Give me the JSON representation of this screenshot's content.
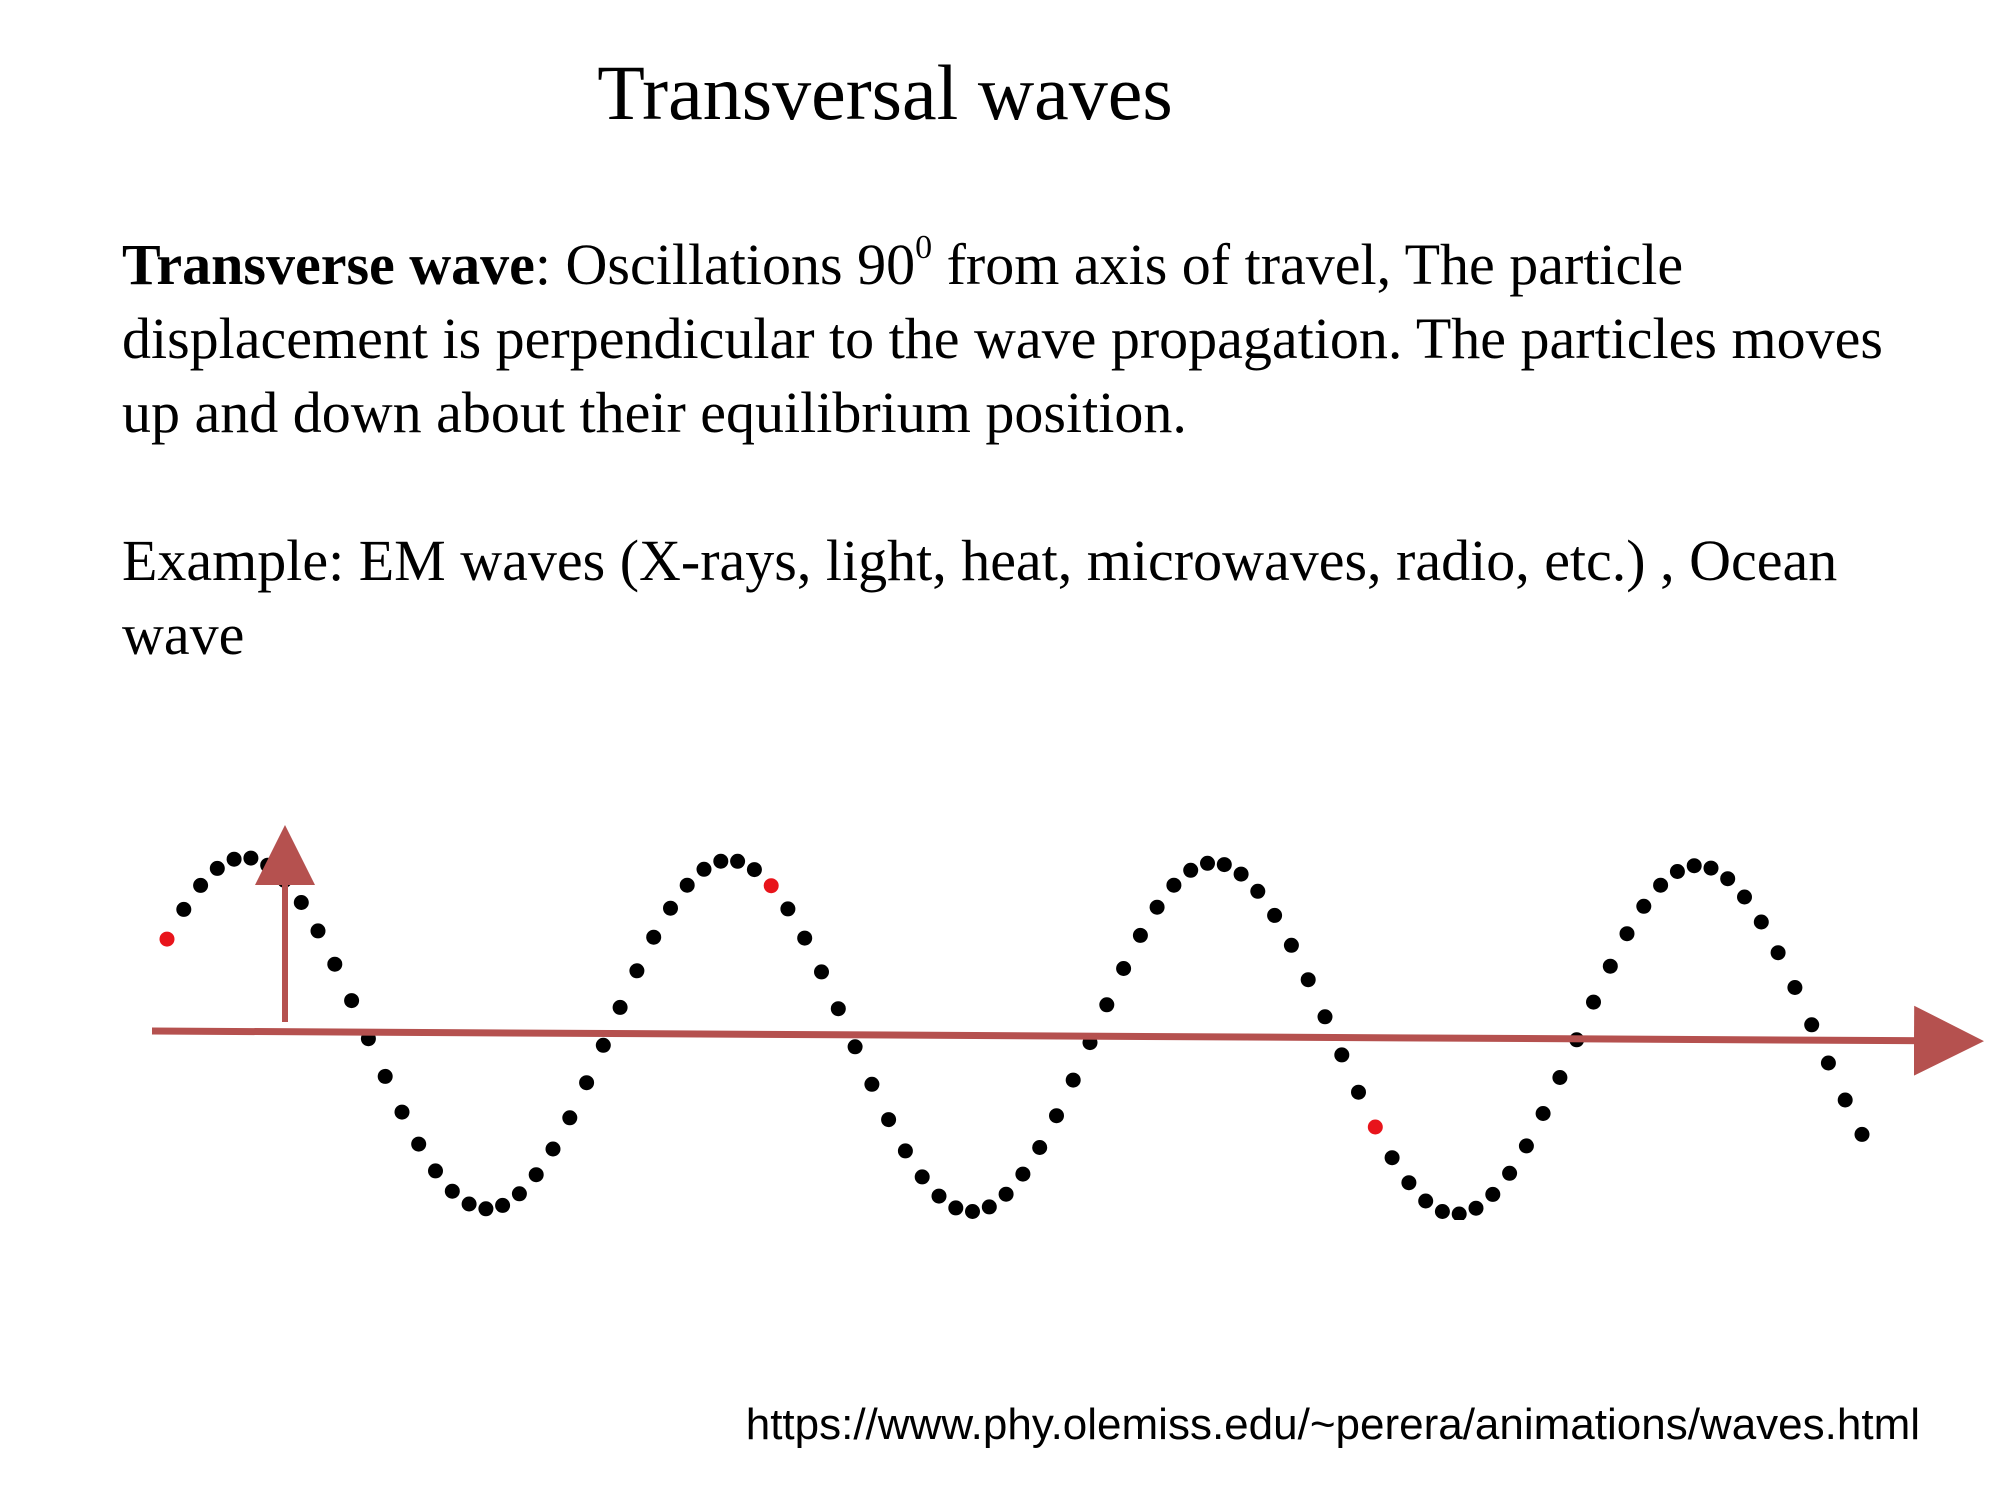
{
  "slide": {
    "title": "Transversal waves",
    "definition": {
      "term": "Transverse wave",
      "separator": ":",
      "text_before_sup": " Oscillations 90",
      "sup": "0",
      "text_after_sup": " from axis of travel, The particle displacement is perpendicular to the wave propagation. The particles moves up and down about their equilibrium position."
    },
    "example": "Example: EM waves (X-rays, light, heat, microwaves, radio, etc.) , Ocean wave",
    "source_url": "https://www.phy.olemiss.edu/~perera/animations/waves.html"
  },
  "diagram": {
    "type": "transverse-wave-particles",
    "cycles": 3.5,
    "particles_per_cycle": 29,
    "highlighted_particles": [
      0,
      36,
      72
    ],
    "colors": {
      "particle": "#000000",
      "highlight": "#e8141b",
      "axis": "#b5514f",
      "displacement_arrow": "#b5514f"
    }
  }
}
